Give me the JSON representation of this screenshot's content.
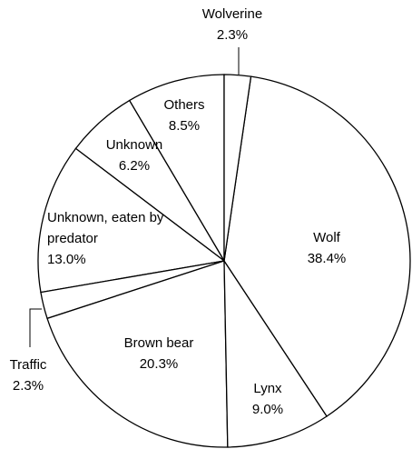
{
  "chart_data": {
    "type": "pie",
    "categories": [
      "Wolverine",
      "Wolf",
      "Lynx",
      "Brown bear",
      "Traffic",
      "Unknown, eaten by predator",
      "Unknown",
      "Others"
    ],
    "values": [
      2.3,
      38.4,
      9.0,
      20.3,
      2.3,
      13.0,
      6.2,
      8.5
    ],
    "value_labels": [
      "2.3%",
      "38.4%",
      "9.0%",
      "20.3%",
      "2.3%",
      "13.0%",
      "6.2%",
      "8.5%"
    ],
    "color": "#ffffff",
    "edge_color": "#000000"
  }
}
